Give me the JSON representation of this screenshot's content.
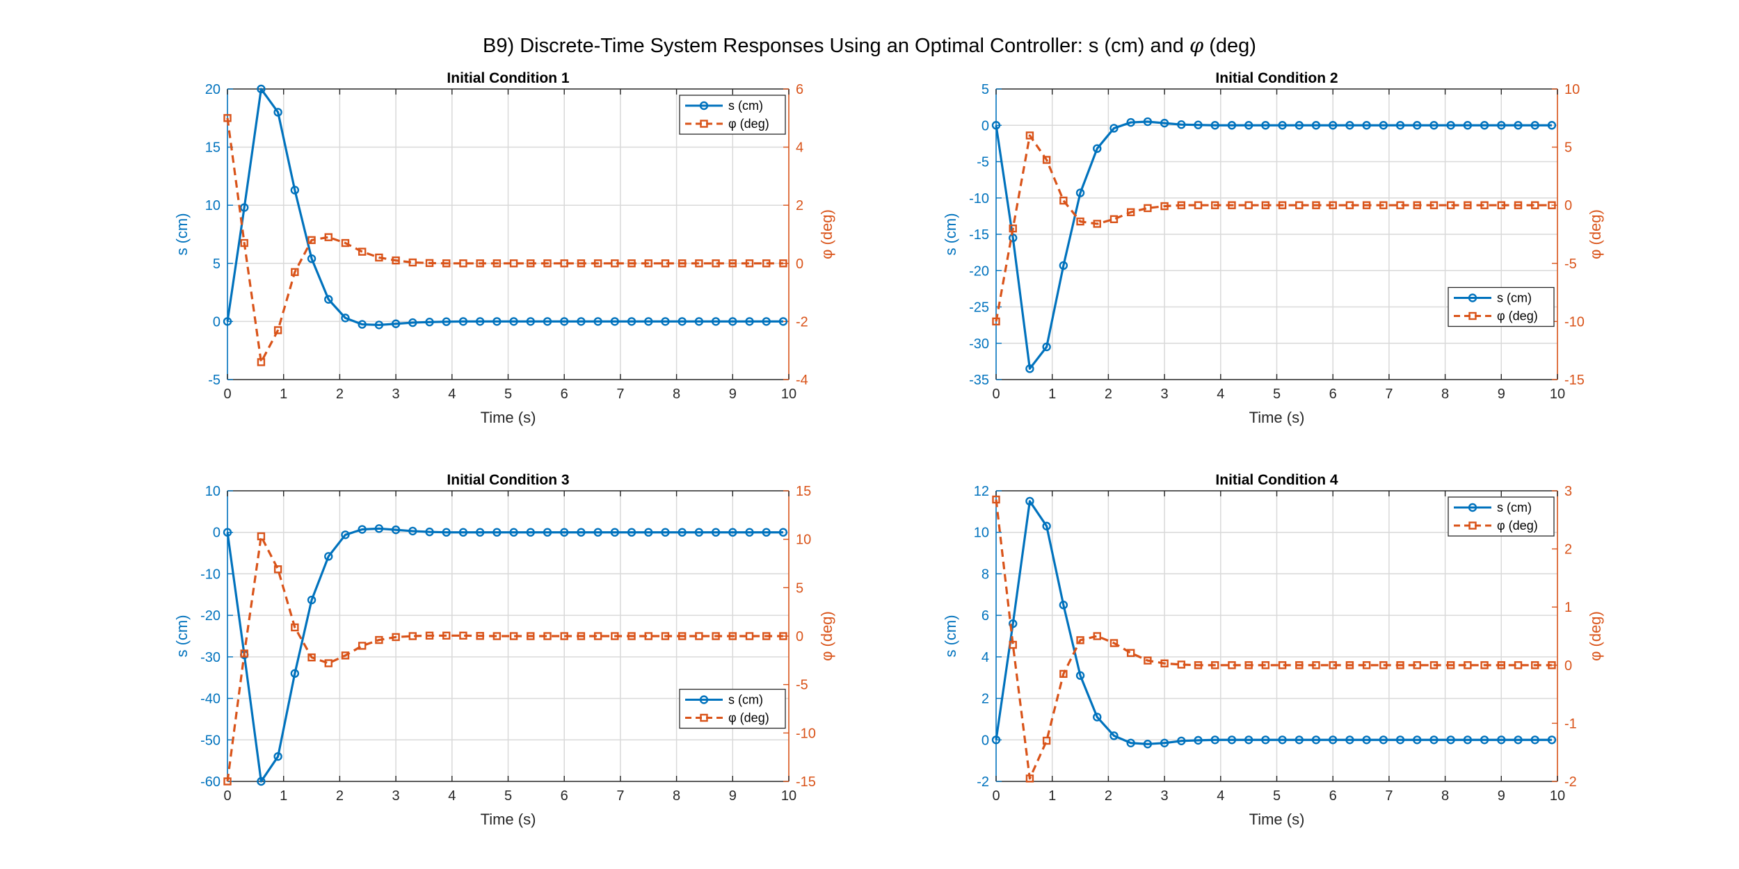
{
  "figure_title": {
    "prefix": "B9) Discrete-Time System Responses Using an Optimal Controller: s (cm) and ",
    "symbol": "φ",
    "suffix": " (deg)"
  },
  "colors": {
    "s": "#0072BD",
    "phi": "#D95319",
    "axis": "#262626",
    "grid": "#d9d9d9"
  },
  "chart_data": [
    {
      "type": "line",
      "title": "Initial Condition 1",
      "xlabel": "Time (s)",
      "ylabel_left": "s (cm)",
      "ylabel_right": "φ (deg)",
      "xlim": [
        0,
        10
      ],
      "ylim_left": [
        -5,
        20
      ],
      "ylim_right": [
        -4,
        6
      ],
      "xticks": [
        0,
        1,
        2,
        3,
        4,
        5,
        6,
        7,
        8,
        9,
        10
      ],
      "yticks_left": [
        -5,
        0,
        5,
        10,
        15,
        20
      ],
      "yticks_right": [
        -4,
        -2,
        0,
        2,
        4,
        6
      ],
      "grid": true,
      "legend_position": "top-right",
      "x": [
        0,
        0.3,
        0.6,
        0.9,
        1.2,
        1.5,
        1.8,
        2.1,
        2.4,
        2.7,
        3.0,
        3.3,
        3.6,
        3.9,
        4.2,
        4.5,
        4.8,
        5.1,
        5.4,
        5.7,
        6.0,
        6.3,
        6.6,
        6.9,
        7.2,
        7.5,
        7.8,
        8.1,
        8.4,
        8.7,
        9.0,
        9.3,
        9.6,
        9.9
      ],
      "series": [
        {
          "name": "s (cm)",
          "axis": "left",
          "marker": "circle",
          "line": "solid",
          "values": [
            0,
            9.8,
            20,
            18,
            11.3,
            5.4,
            1.9,
            0.3,
            -0.25,
            -0.3,
            -0.2,
            -0.1,
            -0.05,
            -0.02,
            0,
            0,
            0,
            0,
            0,
            0,
            0,
            0,
            0,
            0,
            0,
            0,
            0,
            0,
            0,
            0,
            0,
            0,
            0,
            0
          ]
        },
        {
          "name": "φ (deg)",
          "axis": "right",
          "marker": "square",
          "line": "dashed",
          "values": [
            5,
            0.7,
            -3.4,
            -2.3,
            -0.3,
            0.8,
            0.9,
            0.7,
            0.4,
            0.2,
            0.1,
            0.03,
            0.01,
            0,
            0,
            0,
            0,
            0,
            0,
            0,
            0,
            0,
            0,
            0,
            0,
            0,
            0,
            0,
            0,
            0,
            0,
            0,
            0,
            0
          ]
        }
      ]
    },
    {
      "type": "line",
      "title": "Initial Condition 2",
      "xlabel": "Time (s)",
      "ylabel_left": "s (cm)",
      "ylabel_right": "φ (deg)",
      "xlim": [
        0,
        10
      ],
      "ylim_left": [
        -35,
        5
      ],
      "ylim_right": [
        -15,
        10
      ],
      "xticks": [
        0,
        1,
        2,
        3,
        4,
        5,
        6,
        7,
        8,
        9,
        10
      ],
      "yticks_left": [
        -35,
        -30,
        -25,
        -20,
        -15,
        -10,
        -5,
        0,
        5
      ],
      "yticks_right": [
        -15,
        -10,
        -5,
        0,
        5,
        10
      ],
      "grid": true,
      "legend_position": "lower-right",
      "x": [
        0,
        0.3,
        0.6,
        0.9,
        1.2,
        1.5,
        1.8,
        2.1,
        2.4,
        2.7,
        3.0,
        3.3,
        3.6,
        3.9,
        4.2,
        4.5,
        4.8,
        5.1,
        5.4,
        5.7,
        6.0,
        6.3,
        6.6,
        6.9,
        7.2,
        7.5,
        7.8,
        8.1,
        8.4,
        8.7,
        9.0,
        9.3,
        9.6,
        9.9
      ],
      "series": [
        {
          "name": "s (cm)",
          "axis": "left",
          "marker": "circle",
          "line": "solid",
          "values": [
            0,
            -15.5,
            -33.5,
            -30.5,
            -19.3,
            -9.3,
            -3.2,
            -0.4,
            0.4,
            0.5,
            0.3,
            0.1,
            0.05,
            0,
            0,
            0,
            0,
            0,
            0,
            0,
            0,
            0,
            0,
            0,
            0,
            0,
            0,
            0,
            0,
            0,
            0,
            0,
            0,
            0
          ]
        },
        {
          "name": "φ (deg)",
          "axis": "right",
          "marker": "square",
          "line": "dashed",
          "values": [
            -10,
            -2,
            6,
            3.9,
            0.4,
            -1.4,
            -1.6,
            -1.2,
            -0.6,
            -0.25,
            -0.08,
            0,
            0,
            0,
            0,
            0,
            0,
            0,
            0,
            0,
            0,
            0,
            0,
            0,
            0,
            0,
            0,
            0,
            0,
            0,
            0,
            0,
            0,
            0
          ]
        }
      ]
    },
    {
      "type": "line",
      "title": "Initial Condition 3",
      "xlabel": "Time (s)",
      "ylabel_left": "s (cm)",
      "ylabel_right": "φ (deg)",
      "xlim": [
        0,
        10
      ],
      "ylim_left": [
        -60,
        10
      ],
      "ylim_right": [
        -15,
        15
      ],
      "xticks": [
        0,
        1,
        2,
        3,
        4,
        5,
        6,
        7,
        8,
        9,
        10
      ],
      "yticks_left": [
        -60,
        -50,
        -40,
        -30,
        -20,
        -10,
        0,
        10
      ],
      "yticks_right": [
        -15,
        -10,
        -5,
        0,
        5,
        10,
        15
      ],
      "grid": true,
      "legend_position": "lower-right",
      "x": [
        0,
        0.3,
        0.6,
        0.9,
        1.2,
        1.5,
        1.8,
        2.1,
        2.4,
        2.7,
        3.0,
        3.3,
        3.6,
        3.9,
        4.2,
        4.5,
        4.8,
        5.1,
        5.4,
        5.7,
        6.0,
        6.3,
        6.6,
        6.9,
        7.2,
        7.5,
        7.8,
        8.1,
        8.4,
        8.7,
        9.0,
        9.3,
        9.6,
        9.9
      ],
      "series": [
        {
          "name": "s (cm)",
          "axis": "left",
          "marker": "circle",
          "line": "solid",
          "values": [
            0,
            -29.5,
            -60,
            -54,
            -34,
            -16.3,
            -5.8,
            -0.6,
            0.7,
            0.9,
            0.6,
            0.3,
            0.1,
            0,
            0,
            0,
            0,
            0,
            0,
            0,
            0,
            0,
            0,
            0,
            0,
            0,
            0,
            0,
            0,
            0,
            0,
            0,
            0,
            0
          ]
        },
        {
          "name": "φ (deg)",
          "axis": "right",
          "marker": "square",
          "line": "dashed",
          "values": [
            -15,
            -1.8,
            10.3,
            6.9,
            0.9,
            -2.2,
            -2.8,
            -2.0,
            -1.0,
            -0.4,
            -0.1,
            0,
            0.05,
            0.05,
            0.05,
            0.02,
            0,
            0,
            0,
            0,
            0,
            0,
            0,
            0,
            0,
            0,
            0,
            0,
            0,
            0,
            0,
            0,
            0,
            0
          ]
        }
      ]
    },
    {
      "type": "line",
      "title": "Initial Condition 4",
      "xlabel": "Time (s)",
      "ylabel_left": "s (cm)",
      "ylabel_right": "φ (deg)",
      "xlim": [
        0,
        10
      ],
      "ylim_left": [
        -2,
        12
      ],
      "ylim_right": [
        -2,
        3
      ],
      "xticks": [
        0,
        1,
        2,
        3,
        4,
        5,
        6,
        7,
        8,
        9,
        10
      ],
      "yticks_left": [
        -2,
        0,
        2,
        4,
        6,
        8,
        10,
        12
      ],
      "yticks_right": [
        -2,
        -1,
        0,
        1,
        2,
        3
      ],
      "grid": true,
      "legend_position": "top-right",
      "x": [
        0,
        0.3,
        0.6,
        0.9,
        1.2,
        1.5,
        1.8,
        2.1,
        2.4,
        2.7,
        3.0,
        3.3,
        3.6,
        3.9,
        4.2,
        4.5,
        4.8,
        5.1,
        5.4,
        5.7,
        6.0,
        6.3,
        6.6,
        6.9,
        7.2,
        7.5,
        7.8,
        8.1,
        8.4,
        8.7,
        9.0,
        9.3,
        9.6,
        9.9
      ],
      "series": [
        {
          "name": "s (cm)",
          "axis": "left",
          "marker": "circle",
          "line": "solid",
          "values": [
            0,
            5.6,
            11.5,
            10.3,
            6.5,
            3.1,
            1.1,
            0.2,
            -0.15,
            -0.2,
            -0.15,
            -0.05,
            -0.02,
            0,
            0,
            0,
            0,
            0,
            0,
            0,
            0,
            0,
            0,
            0,
            0,
            0,
            0,
            0,
            0,
            0,
            0,
            0,
            0,
            0
          ]
        },
        {
          "name": "φ (deg)",
          "axis": "right",
          "marker": "square",
          "line": "dashed",
          "values": [
            2.85,
            0.35,
            -1.95,
            -1.3,
            -0.15,
            0.43,
            0.5,
            0.38,
            0.21,
            0.08,
            0.03,
            0.01,
            0,
            0,
            0,
            0,
            0,
            0,
            0,
            0,
            0,
            0,
            0,
            0,
            0,
            0,
            0,
            0,
            0,
            0,
            0,
            0,
            0,
            0
          ]
        }
      ]
    }
  ]
}
